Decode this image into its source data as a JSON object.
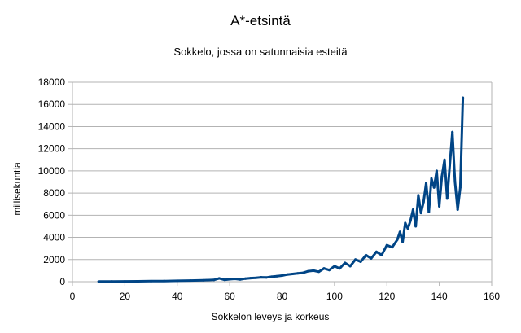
{
  "chart_data": {
    "type": "line",
    "title": "A*-etsintä",
    "subtitle": "Sokkelo, jossa on satunnaisia esteitä",
    "xlabel": "Sokkelon leveys ja korkeus",
    "ylabel": "millisekuntia",
    "xlim": [
      0,
      160
    ],
    "ylim": [
      0,
      18000
    ],
    "x_ticks": [
      0,
      20,
      40,
      60,
      80,
      100,
      120,
      140,
      160
    ],
    "y_ticks": [
      0,
      2000,
      4000,
      6000,
      8000,
      10000,
      12000,
      14000,
      16000,
      18000
    ],
    "grid": true,
    "legend": "none",
    "colors": {
      "series": "#004586",
      "grid": "#b3b3b3"
    },
    "series": [
      {
        "x": [
          10,
          15,
          20,
          25,
          30,
          35,
          40,
          45,
          50,
          54,
          56,
          58,
          60,
          62,
          64,
          66,
          68,
          70,
          72,
          74,
          76,
          78,
          80,
          82,
          84,
          86,
          88,
          90,
          92,
          94,
          96,
          98,
          100,
          102,
          104,
          106,
          108,
          110,
          112,
          114,
          116,
          118,
          120,
          122,
          124,
          125,
          126,
          127,
          128,
          129,
          130,
          131,
          132,
          133,
          134,
          135,
          136,
          137,
          138,
          139,
          140,
          141,
          142,
          143,
          144,
          145,
          146,
          147,
          148,
          149
        ],
        "values": [
          20,
          25,
          30,
          40,
          50,
          60,
          80,
          100,
          130,
          160,
          300,
          170,
          220,
          260,
          200,
          280,
          320,
          350,
          400,
          380,
          450,
          500,
          550,
          650,
          700,
          750,
          800,
          950,
          1000,
          900,
          1200,
          1050,
          1400,
          1200,
          1700,
          1400,
          2000,
          1800,
          2400,
          2100,
          2700,
          2400,
          3300,
          3100,
          3800,
          4500,
          3600,
          5300,
          4800,
          5500,
          6500,
          5000,
          7800,
          6200,
          7200,
          8900,
          6300,
          9300,
          8500,
          10000,
          6800,
          9500,
          11000,
          7500,
          10500,
          13500,
          9000,
          6500,
          8500,
          16600
        ]
      }
    ]
  }
}
